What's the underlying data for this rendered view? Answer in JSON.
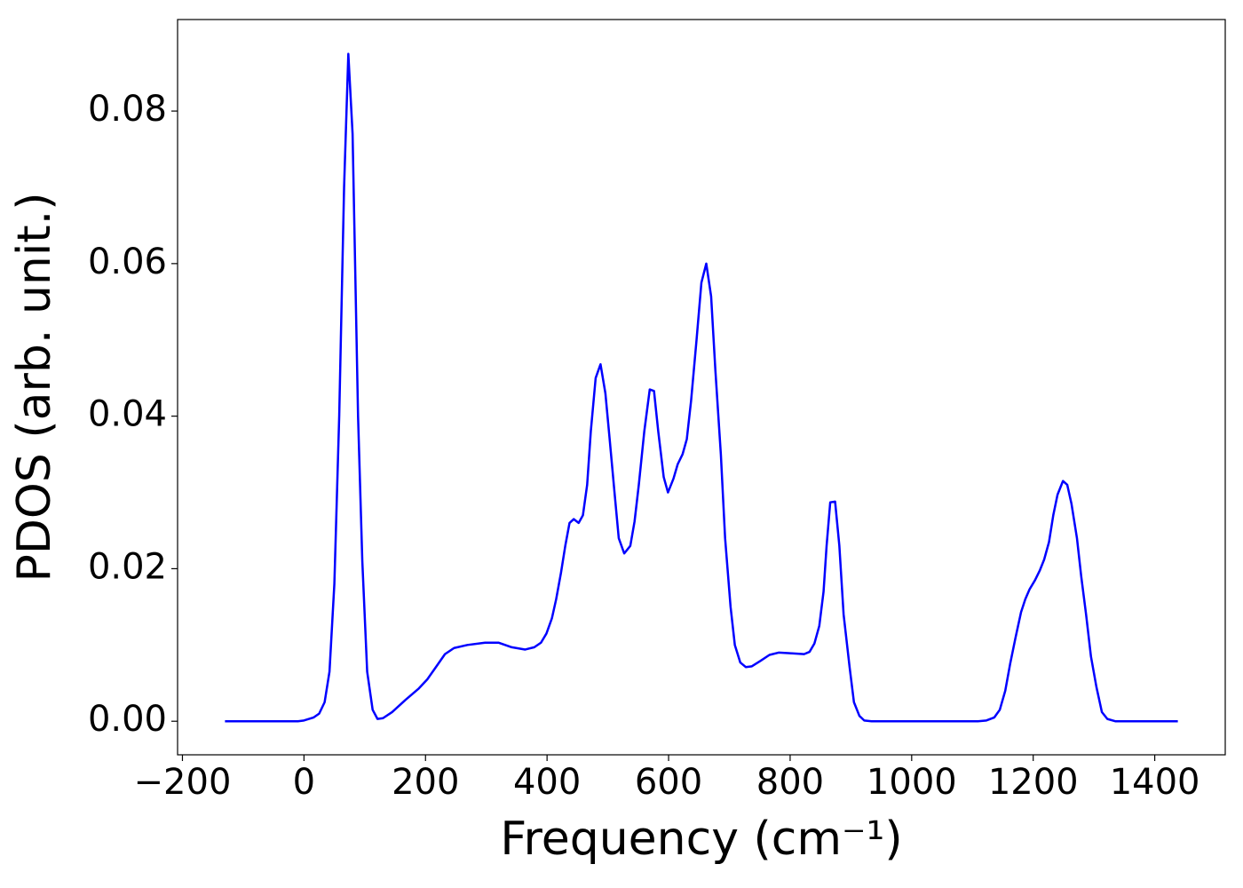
{
  "chart_data": {
    "type": "line",
    "x_label": "Frequency (cm⁻¹)",
    "y_label": "PDOS (arb. unit.)",
    "x": [
      -130,
      -100,
      -50,
      -10,
      0,
      16,
      25,
      34,
      42,
      50,
      58,
      66,
      73,
      80,
      89,
      96,
      104,
      113,
      121,
      130,
      145,
      167,
      189,
      203,
      218,
      232,
      247,
      269,
      298,
      320,
      342,
      364,
      379,
      390,
      399,
      408,
      415,
      423,
      430,
      437,
      444,
      452,
      459,
      466,
      472,
      480,
      488,
      496,
      503,
      511,
      518,
      527,
      537,
      544,
      551,
      560,
      569,
      576,
      583,
      592,
      599,
      608,
      615,
      623,
      630,
      637,
      646,
      654,
      662,
      670,
      677,
      686,
      693,
      702,
      709,
      718,
      727,
      737,
      751,
      766,
      781,
      803,
      823,
      832,
      840,
      848,
      855,
      860,
      866,
      874,
      881,
      888,
      898,
      905,
      914,
      922,
      934,
      963,
      1109,
      1123,
      1136,
      1145,
      1154,
      1162,
      1171,
      1180,
      1187,
      1194,
      1203,
      1211,
      1218,
      1226,
      1233,
      1240,
      1249,
      1256,
      1263,
      1272,
      1279,
      1287,
      1295,
      1304,
      1313,
      1322,
      1335,
      1438
    ],
    "series": [
      {
        "color": "#0000ff",
        "values": [
          0,
          0,
          0,
          0,
          0.0001,
          0.0005,
          0.001,
          0.0025,
          0.0065,
          0.018,
          0.04,
          0.07,
          0.0875,
          0.077,
          0.04,
          0.021,
          0.0065,
          0.0015,
          0.0003,
          0.0004,
          0.0012,
          0.0028,
          0.0043,
          0.0055,
          0.0072,
          0.0088,
          0.0096,
          0.01,
          0.0103,
          0.0103,
          0.0097,
          0.0094,
          0.0097,
          0.0103,
          0.0115,
          0.0135,
          0.016,
          0.0195,
          0.023,
          0.026,
          0.0265,
          0.026,
          0.027,
          0.031,
          0.038,
          0.045,
          0.0468,
          0.043,
          0.037,
          0.03,
          0.024,
          0.022,
          0.023,
          0.0262,
          0.031,
          0.038,
          0.0435,
          0.0433,
          0.038,
          0.032,
          0.03,
          0.0318,
          0.0337,
          0.035,
          0.037,
          0.042,
          0.05,
          0.0575,
          0.06,
          0.0557,
          0.046,
          0.035,
          0.024,
          0.015,
          0.01,
          0.0077,
          0.0071,
          0.0072,
          0.0079,
          0.0087,
          0.009,
          0.0089,
          0.0088,
          0.0091,
          0.0102,
          0.0125,
          0.017,
          0.023,
          0.0287,
          0.0288,
          0.023,
          0.014,
          0.007,
          0.0025,
          0.0007,
          0.0001,
          0,
          0,
          0,
          0.0001,
          0.0005,
          0.0015,
          0.004,
          0.0075,
          0.011,
          0.0143,
          0.016,
          0.0173,
          0.0185,
          0.0198,
          0.0212,
          0.0235,
          0.027,
          0.0297,
          0.0315,
          0.031,
          0.0285,
          0.024,
          0.019,
          0.014,
          0.0085,
          0.0045,
          0.0012,
          0.0003,
          0,
          0
        ]
      }
    ],
    "xlim": [
      -208,
      1516
    ],
    "ylim": [
      -0.0044,
      0.092
    ],
    "xticks": [
      {
        "value": -200,
        "label": "−200"
      },
      0,
      200,
      400,
      600,
      800,
      1000,
      1200,
      1400
    ],
    "yticks": [
      {
        "value": 0,
        "label": "0.00"
      },
      0.02,
      0.04,
      0.06,
      0.08
    ]
  }
}
